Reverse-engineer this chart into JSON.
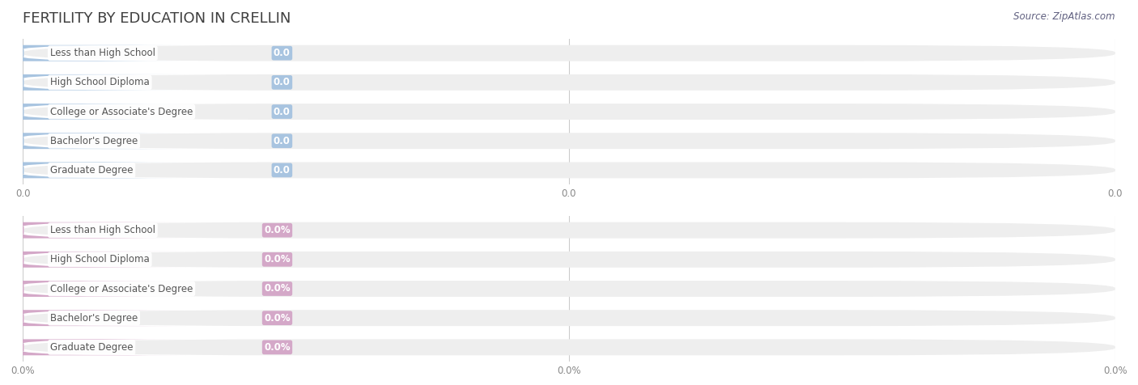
{
  "title": "FERTILITY BY EDUCATION IN CRELLIN",
  "source_text": "Source: ZipAtlas.com",
  "categories": [
    "Less than High School",
    "High School Diploma",
    "College or Associate's Degree",
    "Bachelor's Degree",
    "Graduate Degree"
  ],
  "values_top": [
    0.0,
    0.0,
    0.0,
    0.0,
    0.0
  ],
  "values_bottom": [
    0.0,
    0.0,
    0.0,
    0.0,
    0.0
  ],
  "bar_color_top": "#a8c4e0",
  "bar_color_bottom": "#d4a8c8",
  "label_bg_color_top": "#ffffff",
  "label_bg_color_bottom": "#ffffff",
  "bar_bg_color": "#eeeeee",
  "value_label_color_top": "#a8c4e0",
  "value_label_color_bottom": "#c8a0c0",
  "tick_label_color": "#888888",
  "title_color": "#404040",
  "source_color": "#606080",
  "xlim": [
    0,
    1
  ],
  "top_xlabel": "0.0",
  "bottom_xlabel": "0.0%",
  "fig_width": 14.06,
  "fig_height": 4.76,
  "background_color": "#ffffff"
}
